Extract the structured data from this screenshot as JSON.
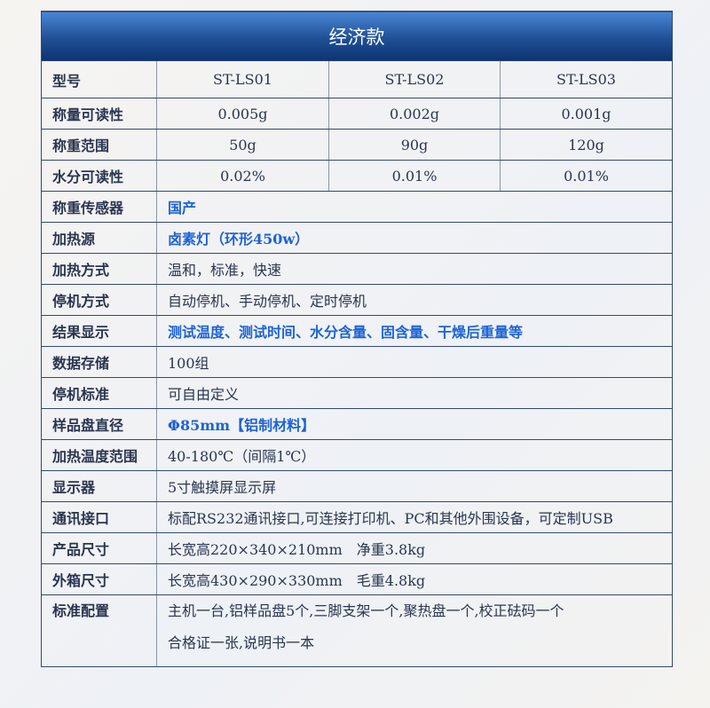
{
  "title": "经济款",
  "models_label": "型号",
  "models": [
    "ST-LS01",
    "ST-LS02",
    "ST-LS03"
  ],
  "multi_rows": [
    {
      "label": "称量可读性",
      "values": [
        "0.005g",
        "0.002g",
        "0.001g"
      ]
    },
    {
      "label": "称重范围",
      "values": [
        "50g",
        "90g",
        "120g"
      ]
    },
    {
      "label": "水分可读性",
      "values": [
        "0.02%",
        "0.01%",
        "0.01%"
      ]
    }
  ],
  "rows": [
    {
      "label": "称重传感器",
      "value": "国产",
      "highlight": true
    },
    {
      "label": "加热源",
      "value": "卤素灯（环形450w）",
      "highlight": true
    },
    {
      "label": "加热方式",
      "value": "温和，标准，快速",
      "highlight": false
    },
    {
      "label": "停机方式",
      "value": "自动停机、手动停机、定时停机",
      "highlight": false
    },
    {
      "label": "结果显示",
      "value": "测试温度、测试时间、水分含量、固含量、干燥后重量等",
      "highlight": true
    },
    {
      "label": "数据存储",
      "value": "100组",
      "highlight": false
    },
    {
      "label": "停机标准",
      "value": "可自由定义",
      "highlight": false
    },
    {
      "label": "样品盘直径",
      "value": "Φ85mm【铝制材料】",
      "highlight": true
    },
    {
      "label": "加热温度范围",
      "value": "40-180℃（间隔1℃）",
      "highlight": false
    },
    {
      "label": "显示器",
      "value": "5寸触摸屏显示屏",
      "highlight": false
    },
    {
      "label": "通讯接口",
      "value": "标配RS232通讯接口,可连接打印机、PC和其他外围设备，可定制USB",
      "highlight": false
    },
    {
      "label": "产品尺寸",
      "value": "长宽高220×340×210mm　净重3.8kg",
      "highlight": false
    },
    {
      "label": "外箱尺寸",
      "value": "长宽高430×290×330mm　毛重4.8kg",
      "highlight": false
    }
  ],
  "config": {
    "label": "标准配置",
    "lines": [
      "主机一台,铝样品盘5个,三脚支架一个,聚热盘一个,校正砝码一个",
      "合格证一张,说明书一本"
    ]
  },
  "colors": {
    "header_top": "#4a86d6",
    "header_bottom": "#0c3472",
    "highlight_text": "#1d63d6",
    "text": "#2a3550"
  }
}
